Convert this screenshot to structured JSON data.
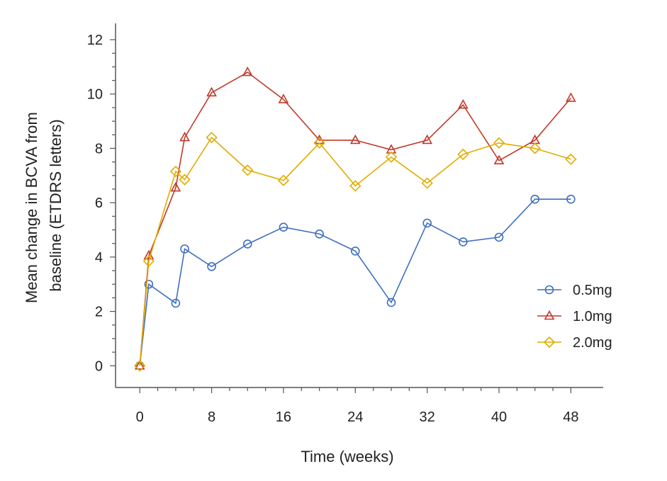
{
  "chart_data": {
    "type": "line",
    "title": "",
    "xlabel": "Time (weeks)",
    "ylabel": [
      "Mean change in BCVA from",
      "baseline (ETDRS letters)"
    ],
    "xlim": [
      -2.7,
      51.6
    ],
    "ylim": [
      -0.8,
      12.6
    ],
    "xticks": [
      0,
      8,
      16,
      24,
      32,
      40,
      48
    ],
    "yticks": [
      0,
      2,
      4,
      6,
      8,
      10,
      12
    ],
    "grid": false,
    "legend_position": "right",
    "series": [
      {
        "name": "0.5mg",
        "color": "#3f6fbf",
        "marker": "circle",
        "x": [
          0,
          1,
          4,
          5,
          8,
          12,
          16,
          20,
          24,
          28,
          32,
          36,
          40,
          44,
          48
        ],
        "y": [
          0,
          3.0,
          2.3,
          4.3,
          3.65,
          4.48,
          5.1,
          4.85,
          4.22,
          2.33,
          5.25,
          4.56,
          4.73,
          6.13,
          6.13
        ]
      },
      {
        "name": "1.0mg",
        "color": "#c0392b",
        "marker": "triangle",
        "x": [
          0,
          1,
          4,
          5,
          8,
          12,
          16,
          20,
          24,
          28,
          32,
          36,
          40,
          44,
          48
        ],
        "y": [
          0,
          4.05,
          6.55,
          8.4,
          10.05,
          10.8,
          9.8,
          8.3,
          8.3,
          7.95,
          8.3,
          9.6,
          7.55,
          8.3,
          9.85
        ]
      },
      {
        "name": "2.0mg",
        "color": "#e0ac00",
        "marker": "diamond",
        "x": [
          0,
          1,
          4,
          5,
          8,
          12,
          16,
          20,
          24,
          28,
          32,
          36,
          40,
          44,
          48
        ],
        "y": [
          0,
          3.85,
          7.15,
          6.85,
          8.4,
          7.2,
          6.82,
          8.2,
          6.62,
          7.68,
          6.72,
          7.78,
          8.2,
          8.0,
          7.6
        ]
      }
    ]
  }
}
